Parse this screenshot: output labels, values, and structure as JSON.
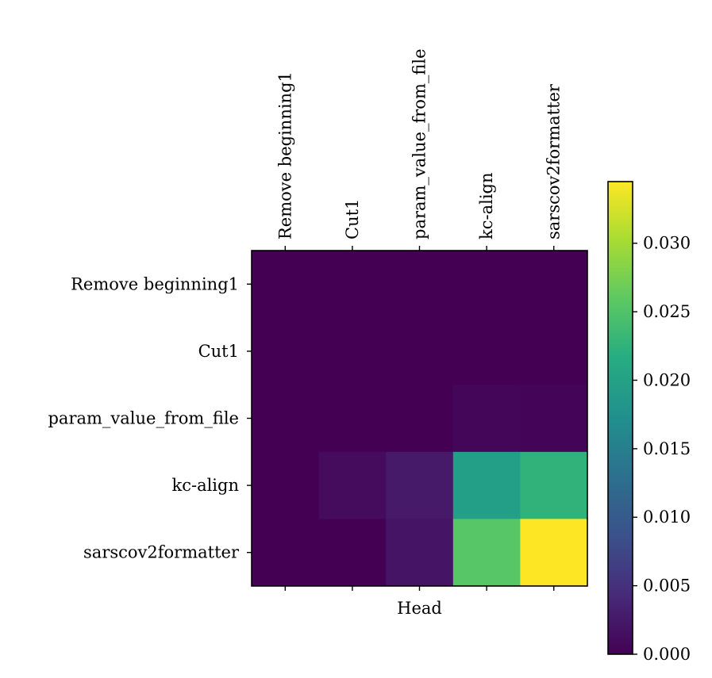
{
  "chart_data": {
    "type": "heatmap",
    "title": "",
    "xlabel": "Head",
    "ylabel": "",
    "x_categories": [
      "Remove beginning1",
      "Cut1",
      "param_value_from_file",
      "kc-align",
      "sarscov2formatter"
    ],
    "y_categories": [
      "Remove beginning1",
      "Cut1",
      "param_value_from_file",
      "kc-align",
      "sarscov2formatter"
    ],
    "values": [
      [
        0.0,
        0.0,
        0.0,
        0.0,
        0.0
      ],
      [
        0.0,
        0.0,
        0.0,
        0.0,
        0.0
      ],
      [
        0.0,
        0.0,
        0.0,
        0.0005,
        0.0003
      ],
      [
        0.0,
        0.001,
        0.0025,
        0.0195,
        0.0225
      ],
      [
        0.0,
        0.0,
        0.002,
        0.0255,
        0.0345
      ]
    ],
    "colormap": "viridis",
    "colorbar": {
      "vmin": 0.0,
      "vmax": 0.0345,
      "ticks": [
        0.0,
        0.005,
        0.01,
        0.015,
        0.02,
        0.025,
        0.03
      ],
      "tick_labels": [
        "0.000",
        "0.005",
        "0.010",
        "0.015",
        "0.020",
        "0.025",
        "0.030"
      ]
    }
  }
}
